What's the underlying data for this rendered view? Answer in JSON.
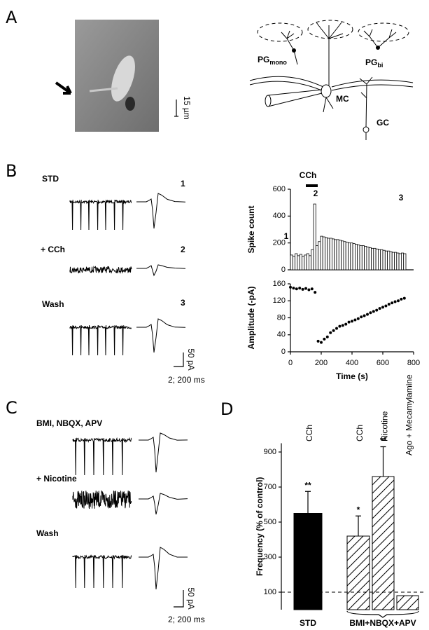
{
  "panel_labels": [
    "A",
    "B",
    "C",
    "D"
  ],
  "panel_a": {
    "scale_bar": "15 µm",
    "cells": {
      "pg_mono": "PG",
      "pg_mono_sub": "mono",
      "pg_bi": "PG",
      "pg_bi_sub": "bi",
      "mc": "MC",
      "gc": "GC"
    }
  },
  "panel_b": {
    "conditions": [
      "STD",
      "+ CCh",
      "Wash"
    ],
    "trace_numbers": [
      "1",
      "2",
      "3"
    ],
    "scale_current": "50 pA",
    "scale_time": "2; 200 ms"
  },
  "panel_c": {
    "conditions": [
      "BMI, NBQX, APV",
      "+ Nicotine",
      "Wash"
    ],
    "scale_current": "50 pA",
    "scale_time": "2; 200 ms"
  },
  "chart_data": [
    {
      "type": "histogram",
      "ylabel": "Spike count",
      "annotations": [
        "CCh",
        "1",
        "2",
        "3"
      ],
      "bins": [
        0,
        15,
        30,
        45,
        60,
        75,
        90,
        105,
        120,
        135,
        150,
        165,
        180,
        195,
        210,
        225,
        240,
        255,
        270,
        285,
        300,
        315,
        330,
        345,
        360,
        375,
        390,
        405,
        420,
        435,
        450,
        465,
        480,
        495,
        510,
        525,
        540,
        555,
        570,
        585,
        600,
        615,
        630,
        645,
        660,
        675,
        690,
        705,
        720,
        735,
        750
      ],
      "values": [
        110,
        100,
        120,
        105,
        115,
        100,
        110,
        120,
        105,
        150,
        490,
        180,
        210,
        250,
        245,
        240,
        235,
        235,
        230,
        225,
        225,
        220,
        215,
        210,
        205,
        200,
        200,
        195,
        190,
        185,
        180,
        180,
        175,
        170,
        165,
        160,
        160,
        155,
        150,
        150,
        145,
        140,
        140,
        135,
        130,
        130,
        125,
        120,
        125,
        120
      ],
      "color": "#000000",
      "xlim": [
        0,
        800
      ],
      "ylim": [
        0,
        600
      ],
      "yticks": [
        0,
        200,
        400,
        600
      ]
    },
    {
      "type": "scatter",
      "xlabel": "Time (s)",
      "ylabel": "Amplitude (-pA)",
      "x": [
        0,
        20,
        40,
        60,
        80,
        100,
        120,
        140,
        160,
        180,
        200,
        220,
        240,
        260,
        280,
        300,
        320,
        340,
        360,
        380,
        400,
        420,
        440,
        460,
        480,
        500,
        520,
        540,
        560,
        580,
        600,
        620,
        640,
        660,
        680,
        700,
        720,
        740
      ],
      "values": [
        152,
        150,
        148,
        150,
        147,
        149,
        146,
        148,
        140,
        25,
        22,
        30,
        35,
        45,
        50,
        55,
        60,
        62,
        65,
        70,
        72,
        75,
        78,
        82,
        85,
        88,
        92,
        95,
        98,
        102,
        105,
        108,
        112,
        115,
        118,
        120,
        124,
        126
      ],
      "color": "#000000",
      "xlim": [
        0,
        800
      ],
      "xticks": [
        0,
        200,
        400,
        600,
        800
      ],
      "ylim": [
        0,
        160
      ],
      "yticks": [
        0,
        40,
        80,
        120,
        160
      ]
    },
    {
      "type": "bar",
      "ylabel": "Frequency (% of control)",
      "categories": [
        "CCh",
        "CCh",
        "Nicotine",
        "Ago + Mecamylamine"
      ],
      "groups": [
        "STD",
        "BMI+NBQX+APV"
      ],
      "group_of": [
        0,
        1,
        1,
        1
      ],
      "values": [
        550,
        420,
        760,
        80
      ],
      "errors": [
        125,
        115,
        170,
        null
      ],
      "annotations": [
        "**",
        "*",
        "**",
        null
      ],
      "color": "#000000",
      "hatch": [
        false,
        true,
        true,
        true
      ],
      "reference_line": 100,
      "ylim": [
        0,
        950
      ],
      "yticks": [
        100,
        300,
        500,
        700,
        900
      ]
    }
  ]
}
